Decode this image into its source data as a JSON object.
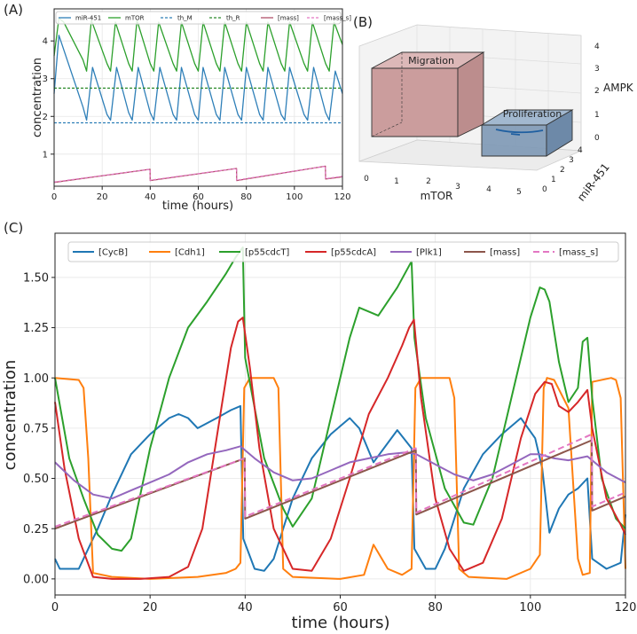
{
  "panels": {
    "a": "(A)",
    "b": "(B)",
    "c": "(C)"
  },
  "chart_data": [
    {
      "panel": "A",
      "type": "line",
      "xlabel": "time (hours)",
      "ylabel": "concentration",
      "xlim": [
        0,
        120
      ],
      "ylim": [
        0.15,
        4.85
      ],
      "xticks": [
        0,
        20,
        40,
        60,
        80,
        100,
        120
      ],
      "yticks": [
        1,
        2,
        3,
        4
      ],
      "legend": [
        "miR-451",
        "mTOR",
        "th_M",
        "th_R",
        "[mass]",
        "[mass_s]"
      ],
      "series": [
        {
          "name": "miR-451",
          "color": "#2e7fb8",
          "x": [
            0,
            2,
            12,
            13.5,
            16,
            22,
            23.5,
            26,
            31,
            32.5,
            35,
            40,
            41.5,
            44,
            49.5,
            51,
            53,
            58.5,
            60,
            62,
            67.5,
            69,
            71,
            76.5,
            78,
            80,
            85.5,
            87,
            89,
            94.5,
            96,
            98,
            104,
            105.5,
            108,
            113,
            114.5,
            117,
            120
          ],
          "y": [
            2.6,
            4.15,
            2.25,
            1.9,
            3.3,
            2.05,
            1.9,
            3.3,
            2.1,
            1.9,
            3.3,
            2.1,
            1.9,
            3.3,
            2.05,
            1.9,
            3.3,
            2.05,
            1.9,
            3.3,
            2.05,
            1.9,
            3.3,
            2.05,
            1.9,
            3.3,
            2.05,
            1.9,
            3.3,
            2.05,
            1.9,
            3.3,
            2.05,
            1.9,
            3.3,
            2.1,
            1.9,
            3.2,
            2.6
          ]
        },
        {
          "name": "mTOR",
          "color": "#2ca02c",
          "x": [
            0,
            2,
            4,
            12,
            13.5,
            15.5,
            22,
            23.5,
            25.5,
            31,
            32.5,
            34.5,
            40,
            41.5,
            43.5,
            49.5,
            51,
            53,
            58.5,
            60,
            62,
            67.5,
            69,
            71,
            76.5,
            78,
            80,
            85.5,
            87,
            89,
            94.5,
            96,
            98,
            104,
            105.5,
            107.5,
            113,
            114.5,
            116.5,
            120
          ],
          "y": [
            3.6,
            4.6,
            4.5,
            3.5,
            3.2,
            4.55,
            3.4,
            3.2,
            4.5,
            3.4,
            3.2,
            4.55,
            3.4,
            3.2,
            4.5,
            3.4,
            3.2,
            4.5,
            3.4,
            3.2,
            4.5,
            3.4,
            3.2,
            4.5,
            3.4,
            3.2,
            4.5,
            3.4,
            3.2,
            4.5,
            3.4,
            3.2,
            4.5,
            3.4,
            3.2,
            4.5,
            3.4,
            3.2,
            4.5,
            3.9
          ]
        },
        {
          "name": "th_M",
          "color": "#2e7fb8",
          "dash": true,
          "x": [
            0,
            120
          ],
          "y": [
            1.83,
            1.83
          ]
        },
        {
          "name": "th_R",
          "color": "#2a8a2a",
          "dash": true,
          "x": [
            0,
            120
          ],
          "y": [
            2.75,
            2.75
          ]
        },
        {
          "name": "[mass]",
          "color": "#b0506a",
          "x": [
            0,
            39.9,
            40,
            75.9,
            76,
            112.9,
            113,
            120
          ],
          "y": [
            0.25,
            0.6,
            0.3,
            0.62,
            0.3,
            0.68,
            0.34,
            0.4
          ]
        },
        {
          "name": "[mass_s]",
          "color": "#e377c2",
          "dash": true,
          "x": [
            0,
            39.9,
            40,
            75.9,
            76,
            112.9,
            113,
            120
          ],
          "y": [
            0.26,
            0.6,
            0.31,
            0.62,
            0.31,
            0.68,
            0.35,
            0.41
          ]
        }
      ]
    },
    {
      "panel": "B",
      "type": "3d-box",
      "xlabel": "mTOR",
      "ylabel": "miR-451",
      "zlabel": "AMPK",
      "xticks": [
        "0",
        "1",
        "2",
        "3",
        "4",
        "5"
      ],
      "yticks": [
        "0",
        "1",
        "2",
        "3",
        "4"
      ],
      "zticks": [
        "0",
        "1",
        "2",
        "3",
        "4"
      ],
      "regions": [
        {
          "label": "Migration",
          "color": "#c99a9a",
          "mTOR": [
            0,
            1.5
          ],
          "miR451": [
            2,
            4
          ],
          "AMPK": [
            0,
            4
          ]
        },
        {
          "label": "Proliferation",
          "color": "#7d98b5",
          "mTOR": [
            3,
            5
          ],
          "miR451": [
            0,
            2
          ],
          "AMPK": [
            0,
            1
          ]
        }
      ]
    },
    {
      "panel": "C",
      "type": "line",
      "xlabel": "time (hours)",
      "ylabel": "concentration",
      "xlim": [
        0,
        120
      ],
      "ylim": [
        -0.08,
        1.72
      ],
      "xticks": [
        0,
        20,
        40,
        60,
        80,
        100,
        120
      ],
      "yticks": [
        "0.00",
        "0.25",
        "0.50",
        "0.75",
        "1.00",
        "1.25",
        "1.50"
      ],
      "legend": [
        "[CycB]",
        "[Cdh1]",
        "[p55cdcT]",
        "[p55cdcA]",
        "[Plk1]",
        "[mass]",
        "[mass_s]"
      ],
      "series": [
        {
          "name": "[CycB]",
          "color": "#1f77b4",
          "x": [
            0,
            1,
            5,
            9,
            12,
            16,
            20,
            24,
            26,
            28,
            30,
            34,
            37,
            39,
            39.6,
            42,
            44,
            46,
            50,
            54,
            58,
            62,
            64,
            67,
            72,
            75,
            75.6,
            78,
            80,
            82,
            86,
            90,
            94,
            98,
            101,
            102.5,
            104,
            106,
            108,
            110,
            112,
            113,
            116,
            119,
            120
          ],
          "y": [
            0.1,
            0.05,
            0.05,
            0.25,
            0.42,
            0.62,
            0.72,
            0.8,
            0.82,
            0.8,
            0.75,
            0.8,
            0.84,
            0.86,
            0.2,
            0.05,
            0.04,
            0.1,
            0.4,
            0.6,
            0.72,
            0.8,
            0.75,
            0.58,
            0.74,
            0.65,
            0.15,
            0.05,
            0.05,
            0.15,
            0.45,
            0.62,
            0.72,
            0.8,
            0.7,
            0.55,
            0.23,
            0.35,
            0.42,
            0.45,
            0.5,
            0.1,
            0.05,
            0.08,
            0.32
          ]
        },
        {
          "name": "[Cdh1]",
          "color": "#ff7f0e",
          "x": [
            0,
            5,
            6,
            7,
            8,
            12,
            20,
            30,
            36,
            38,
            39,
            39.8,
            41,
            46,
            47,
            48,
            50,
            60,
            65,
            67,
            70,
            73,
            75,
            75.8,
            77,
            83,
            84,
            85,
            87,
            95,
            100,
            102,
            102.8,
            103.5,
            105,
            108,
            110,
            111,
            112.5,
            113,
            117,
            118,
            119,
            120
          ],
          "y": [
            1.0,
            0.99,
            0.95,
            0.6,
            0.03,
            0.01,
            0.0,
            0.01,
            0.03,
            0.05,
            0.08,
            0.95,
            1.0,
            1.0,
            0.95,
            0.05,
            0.01,
            0.0,
            0.02,
            0.17,
            0.05,
            0.02,
            0.05,
            0.95,
            1.0,
            1.0,
            0.9,
            0.05,
            0.01,
            0.0,
            0.05,
            0.12,
            0.95,
            1.0,
            0.99,
            0.85,
            0.1,
            0.02,
            0.03,
            0.98,
            1.0,
            0.99,
            0.9,
            0.05
          ]
        },
        {
          "name": "[p55cdcT]",
          "color": "#2ca02c",
          "x": [
            0,
            3,
            6,
            9,
            12,
            14,
            16,
            20,
            24,
            28,
            32,
            36,
            38,
            39.5,
            40,
            44,
            48,
            50,
            54,
            58,
            62,
            64,
            66,
            68,
            72,
            75,
            75.6,
            78,
            82,
            86,
            88,
            92,
            96,
            100,
            102,
            103,
            104,
            106,
            108,
            110,
            111,
            112,
            113,
            115,
            118,
            120
          ],
          "y": [
            1.0,
            0.6,
            0.4,
            0.22,
            0.15,
            0.14,
            0.2,
            0.65,
            1.0,
            1.25,
            1.38,
            1.52,
            1.6,
            1.65,
            1.1,
            0.6,
            0.35,
            0.26,
            0.4,
            0.8,
            1.2,
            1.35,
            1.33,
            1.31,
            1.45,
            1.58,
            1.2,
            0.8,
            0.45,
            0.28,
            0.27,
            0.5,
            0.9,
            1.3,
            1.45,
            1.44,
            1.38,
            1.08,
            0.88,
            0.95,
            1.18,
            1.2,
            0.9,
            0.5,
            0.3,
            0.25
          ]
        },
        {
          "name": "[p55cdcA]",
          "color": "#d62728",
          "x": [
            0,
            2,
            5,
            8,
            12,
            18,
            24,
            28,
            31,
            33,
            35,
            37,
            38.5,
            39.5,
            41,
            43,
            46,
            50,
            54,
            58,
            62,
            66,
            70,
            73,
            74.5,
            75.5,
            77,
            80,
            83,
            86,
            90,
            94,
            98,
            101,
            103,
            104.5,
            106,
            108,
            110,
            112,
            113,
            116,
            119,
            120
          ],
          "y": [
            0.88,
            0.55,
            0.2,
            0.01,
            0.0,
            0.0,
            0.01,
            0.06,
            0.25,
            0.55,
            0.85,
            1.15,
            1.28,
            1.3,
            1.05,
            0.65,
            0.25,
            0.05,
            0.04,
            0.2,
            0.5,
            0.82,
            1.0,
            1.16,
            1.25,
            1.29,
            0.9,
            0.4,
            0.15,
            0.04,
            0.08,
            0.3,
            0.7,
            0.92,
            0.98,
            0.97,
            0.86,
            0.83,
            0.88,
            0.94,
            0.75,
            0.4,
            0.27,
            0.22
          ]
        },
        {
          "name": "[Plk1]",
          "color": "#9467bd",
          "x": [
            0,
            4,
            8,
            12,
            16,
            20,
            24,
            28,
            32,
            36,
            39,
            42,
            46,
            50,
            54,
            58,
            62,
            66,
            70,
            74,
            76,
            80,
            84,
            88,
            92,
            96,
            100,
            102,
            105,
            108,
            112,
            116,
            120
          ],
          "y": [
            0.58,
            0.49,
            0.42,
            0.4,
            0.44,
            0.48,
            0.52,
            0.58,
            0.62,
            0.64,
            0.66,
            0.6,
            0.53,
            0.49,
            0.5,
            0.54,
            0.58,
            0.6,
            0.62,
            0.63,
            0.62,
            0.57,
            0.52,
            0.49,
            0.52,
            0.57,
            0.62,
            0.62,
            0.6,
            0.59,
            0.61,
            0.53,
            0.48
          ]
        },
        {
          "name": "[mass]",
          "color": "#8c564b",
          "x": [
            0,
            39.9,
            40,
            75.9,
            76,
            112.9,
            113,
            120
          ],
          "y": [
            0.25,
            0.6,
            0.3,
            0.64,
            0.32,
            0.69,
            0.34,
            0.41
          ]
        },
        {
          "name": "[mass_s]",
          "color": "#e377c2",
          "dash": true,
          "x": [
            0,
            39.9,
            40,
            75.9,
            76,
            112.9,
            113,
            120
          ],
          "y": [
            0.26,
            0.6,
            0.31,
            0.65,
            0.33,
            0.72,
            0.36,
            0.43
          ]
        }
      ]
    }
  ]
}
